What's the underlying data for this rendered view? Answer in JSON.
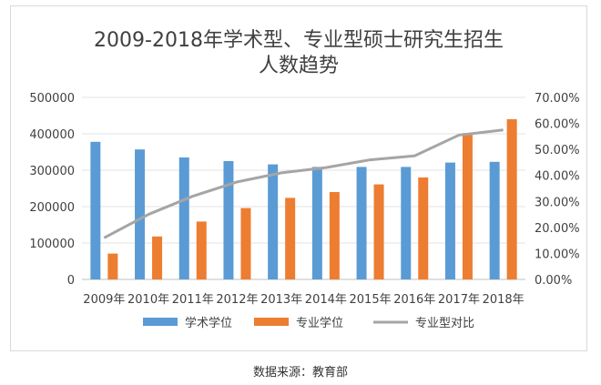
{
  "chart_data": {
    "type": "bar",
    "title_line1": "2009-2018年学术型、专业型硕士研究生招生",
    "title_line2": "人数趋势",
    "categories": [
      "2009年",
      "2010年",
      "2011年",
      "2012年",
      "2013年",
      "2014年",
      "2015年",
      "2016年",
      "2017年",
      "2018年"
    ],
    "series": [
      {
        "name": "学术学位",
        "type": "bar",
        "axis": "left",
        "color": "#5b9bd5",
        "values": [
          378000,
          357000,
          335000,
          325000,
          316000,
          309000,
          309000,
          309000,
          321000,
          323000
        ]
      },
      {
        "name": "专业学位",
        "type": "bar",
        "axis": "left",
        "color": "#ed7d31",
        "values": [
          71000,
          118000,
          159000,
          196000,
          224000,
          240000,
          261000,
          280000,
          402000,
          440000
        ]
      },
      {
        "name": "专业型对比",
        "type": "line",
        "axis": "right",
        "color": "#a5a5a5",
        "values": [
          0.16,
          0.25,
          0.32,
          0.375,
          0.41,
          0.43,
          0.46,
          0.475,
          0.555,
          0.575
        ]
      }
    ],
    "yaxis_left": {
      "min": 0,
      "max": 500000,
      "ticks": [
        "0",
        "100000",
        "200000",
        "300000",
        "400000",
        "500000"
      ]
    },
    "yaxis_right": {
      "min": 0,
      "max": 0.7,
      "ticks": [
        "0.00%",
        "10.00%",
        "20.00%",
        "30.00%",
        "40.00%",
        "50.00%",
        "60.00%",
        "70.00%"
      ]
    },
    "gridlines": true,
    "legend_position": "bottom"
  },
  "source": "数据来源：教育部"
}
